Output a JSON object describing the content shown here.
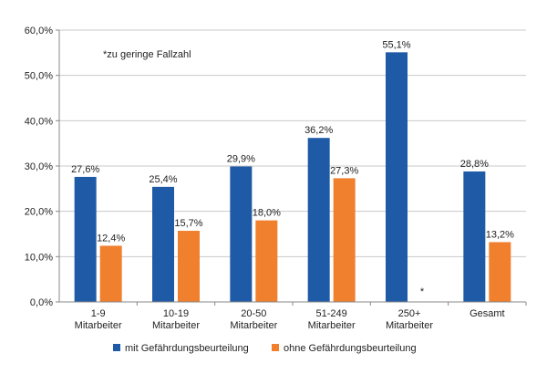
{
  "chart_data": {
    "type": "bar",
    "title": "",
    "xlabel": "",
    "ylabel": "",
    "ylim": [
      0,
      60
    ],
    "ytick_labels": [
      "0,0%",
      "10,0%",
      "20,0%",
      "30,0%",
      "40,0%",
      "50,0%",
      "60,0%"
    ],
    "categories": [
      [
        "1-9",
        "Mitarbeiter"
      ],
      [
        "10-19",
        "Mitarbeiter"
      ],
      [
        "20-50",
        "Mitarbeiter"
      ],
      [
        "51-249",
        "Mitarbeiter"
      ],
      [
        "250+",
        "Mitarbeiter"
      ],
      [
        "Gesamt"
      ]
    ],
    "series": [
      {
        "name": "mit Gefährdungsbeurteilung",
        "color": "#1f5aa6",
        "values": [
          27.6,
          25.4,
          29.9,
          36.2,
          55.1,
          28.8
        ],
        "labels": [
          "27,6%",
          "25,4%",
          "29,9%",
          "36,2%",
          "55,1%",
          "28,8%"
        ]
      },
      {
        "name": "ohne Gefährdungsbeurteilung",
        "color": "#f07f2e",
        "values": [
          12.4,
          15.7,
          18.0,
          27.3,
          null,
          13.2
        ],
        "labels": [
          "12,4%",
          "15,7%",
          "18,0%",
          "27,3%",
          "*",
          "13,2%"
        ]
      }
    ],
    "annotation": "*zu geringe Fallzahl",
    "legend_position": "bottom"
  }
}
